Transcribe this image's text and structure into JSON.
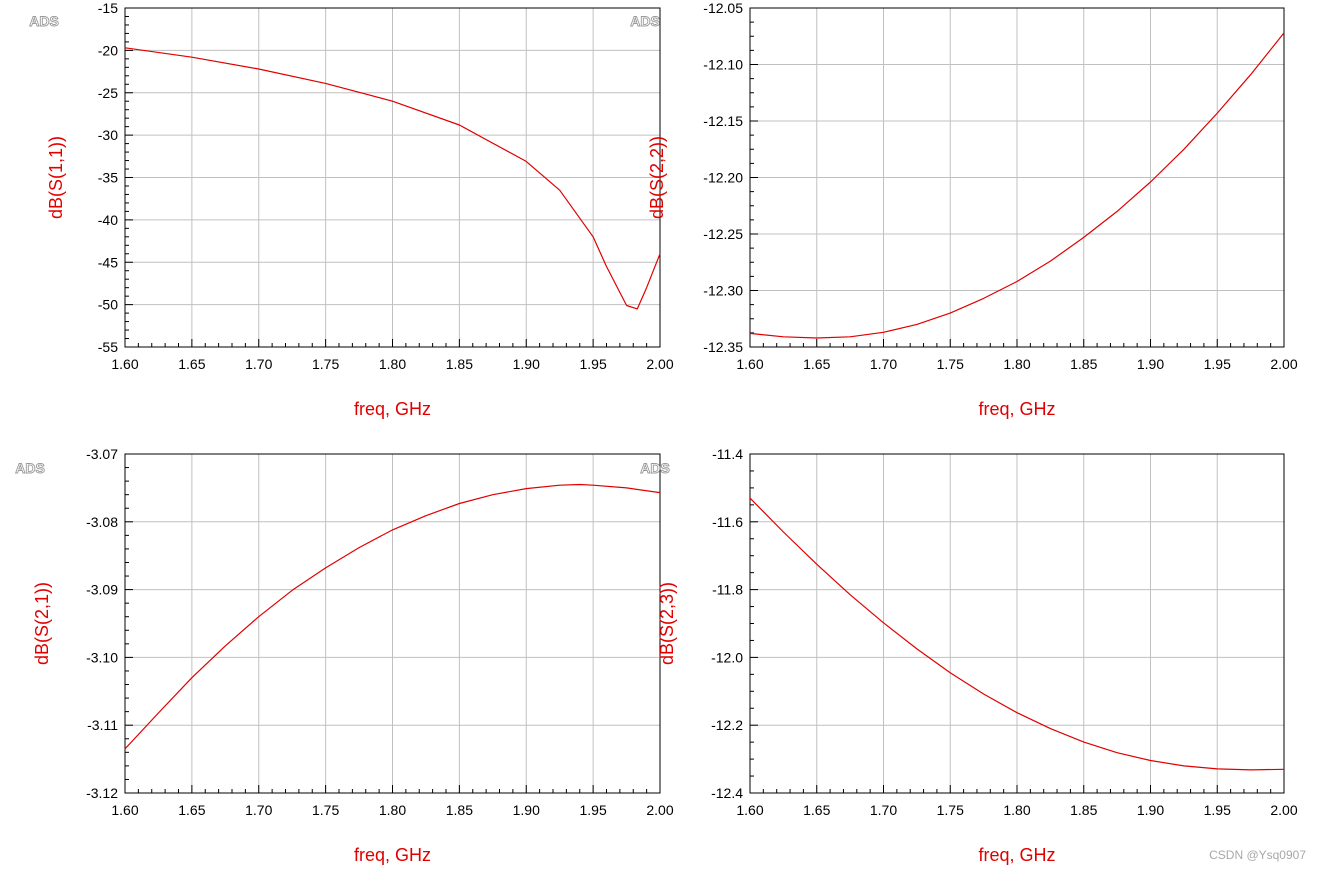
{
  "brand_mark": "ADS",
  "watermark": "CSDN @Ysq0907",
  "colors": {
    "trace": "#e00000",
    "grid": "#c0c0c0",
    "axis": "#000000"
  },
  "chart_data": [
    {
      "type": "line",
      "xlabel": "freq, GHz",
      "ylabel": "dB(S(1,1))",
      "xlim": [
        1.6,
        2.0
      ],
      "ylim": [
        -55,
        -15
      ],
      "xticks": [
        "1.60",
        "1.65",
        "1.70",
        "1.75",
        "1.80",
        "1.85",
        "1.90",
        "1.95",
        "2.00"
      ],
      "yticks": [
        "-15",
        "-20",
        "-25",
        "-30",
        "-35",
        "-40",
        "-45",
        "-50",
        "-55"
      ],
      "ytick_values": [
        -15,
        -20,
        -25,
        -30,
        -35,
        -40,
        -45,
        -50,
        -55
      ],
      "grid": true,
      "x": [
        1.6,
        1.65,
        1.7,
        1.75,
        1.8,
        1.85,
        1.9,
        1.925,
        1.95,
        1.96,
        1.975,
        1.983,
        1.99,
        2.0
      ],
      "y": [
        -19.7,
        -20.8,
        -22.2,
        -23.9,
        -26.0,
        -28.8,
        -33.1,
        -36.5,
        -42.0,
        -45.5,
        -50.1,
        -50.5,
        -48.0,
        -44.0
      ]
    },
    {
      "type": "line",
      "xlabel": "freq, GHz",
      "ylabel": "dB(S(2,2))",
      "xlim": [
        1.6,
        2.0
      ],
      "ylim": [
        -12.35,
        -12.05
      ],
      "xticks": [
        "1.60",
        "1.65",
        "1.70",
        "1.75",
        "1.80",
        "1.85",
        "1.90",
        "1.95",
        "2.00"
      ],
      "yticks": [
        "-12.05",
        "-12.10",
        "-12.15",
        "-12.20",
        "-12.25",
        "-12.30",
        "-12.35"
      ],
      "ytick_values": [
        -12.05,
        -12.1,
        -12.15,
        -12.2,
        -12.25,
        -12.3,
        -12.35
      ],
      "grid": true,
      "x": [
        1.6,
        1.625,
        1.65,
        1.675,
        1.7,
        1.725,
        1.75,
        1.775,
        1.8,
        1.825,
        1.85,
        1.875,
        1.9,
        1.925,
        1.95,
        1.975,
        2.0
      ],
      "y": [
        -12.338,
        -12.341,
        -12.342,
        -12.341,
        -12.337,
        -12.33,
        -12.32,
        -12.307,
        -12.292,
        -12.274,
        -12.253,
        -12.23,
        -12.204,
        -12.175,
        -12.143,
        -12.109,
        -12.072
      ]
    },
    {
      "type": "line",
      "xlabel": "freq, GHz",
      "ylabel": "dB(S(2,1))",
      "xlim": [
        1.6,
        2.0
      ],
      "ylim": [
        -3.12,
        -3.07
      ],
      "xticks": [
        "1.60",
        "1.65",
        "1.70",
        "1.75",
        "1.80",
        "1.85",
        "1.90",
        "1.95",
        "2.00"
      ],
      "yticks": [
        "-3.07",
        "-3.08",
        "-3.09",
        "-3.10",
        "-3.11",
        "-3.12"
      ],
      "ytick_values": [
        -3.07,
        -3.08,
        -3.09,
        -3.1,
        -3.11,
        -3.12
      ],
      "grid": true,
      "x": [
        1.6,
        1.625,
        1.65,
        1.675,
        1.7,
        1.725,
        1.75,
        1.775,
        1.8,
        1.825,
        1.85,
        1.875,
        1.9,
        1.925,
        1.94,
        1.95,
        1.975,
        2.0
      ],
      "y": [
        -3.1135,
        -3.1082,
        -3.103,
        -3.0983,
        -3.094,
        -3.0901,
        -3.0868,
        -3.0838,
        -3.0812,
        -3.0791,
        -3.0773,
        -3.076,
        -3.0751,
        -3.0746,
        -3.0745,
        -3.0746,
        -3.075,
        -3.0757
      ]
    },
    {
      "type": "line",
      "xlabel": "freq, GHz",
      "ylabel": "dB(S(2,3))",
      "xlim": [
        1.6,
        2.0
      ],
      "ylim": [
        -12.4,
        -11.4
      ],
      "xticks": [
        "1.60",
        "1.65",
        "1.70",
        "1.75",
        "1.80",
        "1.85",
        "1.90",
        "1.95",
        "2.00"
      ],
      "yticks": [
        "-11.4",
        "-11.6",
        "-11.8",
        "-12.0",
        "-12.2",
        "-12.4"
      ],
      "ytick_values": [
        -11.4,
        -11.6,
        -11.8,
        -12.0,
        -12.2,
        -12.4
      ],
      "grid": true,
      "x": [
        1.6,
        1.625,
        1.65,
        1.675,
        1.7,
        1.725,
        1.75,
        1.775,
        1.8,
        1.825,
        1.85,
        1.875,
        1.9,
        1.925,
        1.95,
        1.975,
        2.0
      ],
      "y": [
        -11.53,
        -11.63,
        -11.725,
        -11.815,
        -11.898,
        -11.975,
        -12.045,
        -12.108,
        -12.163,
        -12.21,
        -12.25,
        -12.281,
        -12.304,
        -12.32,
        -12.329,
        -12.332,
        -12.33
      ]
    }
  ]
}
